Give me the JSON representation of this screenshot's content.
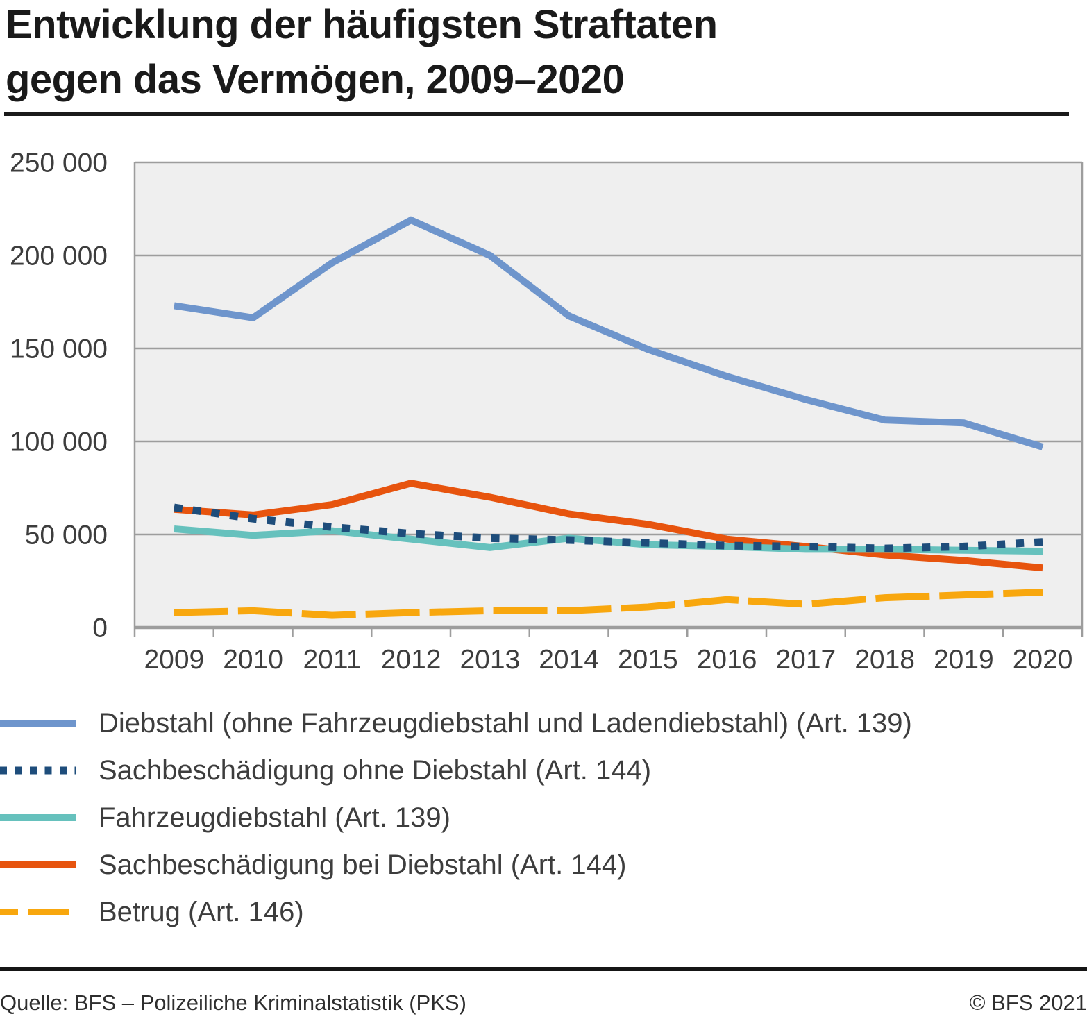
{
  "title": {
    "line1": "Entwicklung der häufigsten Straftaten",
    "line2": "gegen das Vermögen, 2009–2020"
  },
  "footer": {
    "source": "Quelle: BFS – Polizeiliche Kriminalstatistik (PKS)",
    "copyright": "© BFS 2021"
  },
  "colors": {
    "plot_background": "#EFEFEF",
    "gridline": "#9D9D9D",
    "axis_text": "#3d3d3d",
    "title_text": "#1a1a1a"
  },
  "chart_data": {
    "type": "line",
    "title": "Entwicklung der häufigsten Straftaten gegen das Vermögen, 2009–2020",
    "xlabel": "",
    "ylabel": "",
    "grid": "horizontal",
    "legend_position": "bottom-left",
    "ylim": [
      0,
      250000
    ],
    "categories": [
      "2009",
      "2010",
      "2011",
      "2012",
      "2013",
      "2014",
      "2015",
      "2016",
      "2017",
      "2018",
      "2019",
      "2020"
    ],
    "yticks": [
      {
        "value": 250000,
        "label": "250 000"
      },
      {
        "value": 200000,
        "label": "200 000"
      },
      {
        "value": 150000,
        "label": "150 000"
      },
      {
        "value": 100000,
        "label": "100 000"
      },
      {
        "value": 50000,
        "label": "50 000"
      },
      {
        "value": 0,
        "label": "0"
      }
    ],
    "draw_order": [
      0,
      3,
      2,
      1,
      4
    ],
    "series": [
      {
        "name": "Diebstahl (ohne Fahrzeugdiebstahl und Ladendiebstahl) (Art. 139)",
        "color": "#6E95CC",
        "line_style": "solid",
        "values": [
          173000,
          166500,
          196000,
          219000,
          200000,
          167500,
          149500,
          135000,
          122500,
          111500,
          110000,
          97000
        ]
      },
      {
        "name": "Sachbeschädigung ohne Diebstahl (Art. 144)",
        "color": "#1E4D7B",
        "line_style": "dotted",
        "values": [
          64500,
          58500,
          54000,
          50500,
          48000,
          47000,
          45500,
          44000,
          43500,
          42500,
          43500,
          46000
        ]
      },
      {
        "name": "Fahrzeugdiebstahl (Art. 139)",
        "color": "#66C1BD",
        "line_style": "solid",
        "values": [
          53000,
          49500,
          52000,
          47500,
          43000,
          48000,
          44500,
          43500,
          42000,
          42000,
          41500,
          41000
        ]
      },
      {
        "name": "Sachbeschädigung bei Diebstahl (Art. 144)",
        "color": "#E7540E",
        "line_style": "solid",
        "values": [
          63500,
          60500,
          66000,
          77500,
          70000,
          61000,
          55500,
          47500,
          43500,
          39000,
          36000,
          32000
        ]
      },
      {
        "name": "Betrug (Art. 146)",
        "color": "#F8A70E",
        "line_style": "dashed",
        "values": [
          8000,
          9000,
          6500,
          8000,
          9000,
          9000,
          11000,
          15000,
          12500,
          16000,
          17500,
          19000
        ]
      }
    ]
  }
}
